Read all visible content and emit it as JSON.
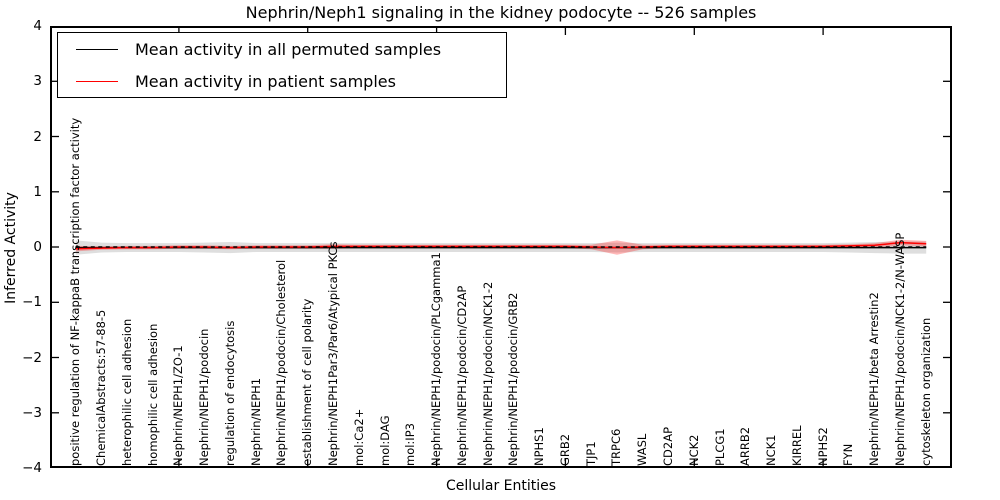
{
  "title": "Nephrin/Neph1 signaling in the kidney podocyte -- 526 samples",
  "axes": {
    "ylabel": "Inferred Activity",
    "xlabel": "Cellular Entities",
    "yticks": [
      {
        "value": 4,
        "label": "4"
      },
      {
        "value": 3,
        "label": "3"
      },
      {
        "value": 2,
        "label": "2"
      },
      {
        "value": 1,
        "label": "1"
      },
      {
        "value": 0,
        "label": "0"
      },
      {
        "value": -1,
        "label": "−1"
      },
      {
        "value": -2,
        "label": "−2"
      },
      {
        "value": -3,
        "label": "−3"
      },
      {
        "value": -4,
        "label": "−4"
      }
    ]
  },
  "legend": {
    "items": [
      {
        "label": "Mean activity in all permuted samples",
        "color": "#000000"
      },
      {
        "label": "Mean activity in patient samples",
        "color": "#ff0000"
      }
    ]
  },
  "chart_data": {
    "type": "line",
    "title": "Nephrin/Neph1 signaling in the kidney podocyte -- 526 samples",
    "xlabel": "Cellular Entities",
    "ylabel": "Inferred Activity",
    "ylim": [
      -4,
      4
    ],
    "xlim": [
      0,
      35
    ],
    "xticks": [
      0,
      5,
      10,
      15,
      20,
      25,
      30,
      35
    ],
    "grid": false,
    "legend_position": "upper left",
    "zero_line": {
      "y": 0,
      "style": "dashed",
      "color": "#000000"
    },
    "categories": [
      "positive regulation of NF-kappaB transcription factor activity",
      "ChemicalAbstracts:57-88-5",
      "heterophilic cell adhesion",
      "homophilic cell adhesion",
      "Nephrin/NEPH1/ZO-1",
      "Nephrin/NEPH1/podocin",
      "regulation of endocytosis",
      "Nephrin/NEPH1",
      "Nephrin/NEPH1/podocin/Cholesterol",
      "establishment of cell polarity",
      "Nephrin/NEPH1Par3/Par6/Atypical PKCs",
      "mol:Ca2+",
      "mol:DAG",
      "mol:IP3",
      "Nephrin/NEPH1/podocin/PLCgamma1",
      "Nephrin/NEPH1/podocin/CD2AP",
      "Nephrin/NEPH1/podocin/NCK1-2",
      "Nephrin/NEPH1/podocin/GRB2",
      "NPHS1",
      "GRB2",
      "TJP1",
      "TRPC6",
      "WASL",
      "CD2AP",
      "NCK2",
      "PLCG1",
      "ARRB2",
      "NCK1",
      "KIRREL",
      "NPHS2",
      "FYN",
      "Nephrin/NEPH1/beta Arrestin2",
      "Nephrin/NEPH1/podocin/NCK1-2/N-WASP",
      "cytoskeleton organization"
    ],
    "series": [
      {
        "name": "Mean activity in all permuted samples",
        "color": "#000000",
        "line_style": "solid",
        "values": [
          -0.01,
          -0.01,
          -0.01,
          -0.01,
          -0.01,
          -0.01,
          -0.01,
          -0.01,
          -0.01,
          -0.01,
          -0.01,
          -0.01,
          -0.01,
          -0.01,
          -0.01,
          -0.01,
          -0.01,
          -0.01,
          -0.01,
          -0.01,
          -0.01,
          -0.01,
          -0.01,
          -0.01,
          -0.01,
          -0.01,
          -0.01,
          -0.01,
          -0.01,
          -0.01,
          -0.01,
          -0.01,
          -0.01,
          -0.01
        ],
        "ci_half_width": [
          0.13,
          0.09,
          0.08,
          0.08,
          0.08,
          0.09,
          0.1,
          0.08,
          0.08,
          0.08,
          0.08,
          0.08,
          0.08,
          0.08,
          0.08,
          0.08,
          0.08,
          0.08,
          0.08,
          0.08,
          0.08,
          0.09,
          0.08,
          0.08,
          0.08,
          0.08,
          0.08,
          0.08,
          0.08,
          0.08,
          0.09,
          0.1,
          0.11,
          0.11
        ],
        "ci_fill": "rgba(0,0,0,0.13)"
      },
      {
        "name": "Mean activity in patient samples",
        "color": "#ff0000",
        "line_style": "solid",
        "values": [
          -0.03,
          -0.02,
          -0.01,
          -0.01,
          0,
          0,
          -0.01,
          0,
          0,
          0,
          0.01,
          0.01,
          0.01,
          0.01,
          0.01,
          0.01,
          0.01,
          0.01,
          0.01,
          0.01,
          0,
          -0.01,
          0,
          0.01,
          0.01,
          0.01,
          0.01,
          0.01,
          0.01,
          0.01,
          0.02,
          0.03,
          0.08,
          0.06
        ],
        "ci_half_width": [
          0.05,
          0.03,
          0.03,
          0.03,
          0.03,
          0.03,
          0.03,
          0.03,
          0.03,
          0.03,
          0.04,
          0.03,
          0.03,
          0.03,
          0.03,
          0.03,
          0.03,
          0.03,
          0.03,
          0.03,
          0.04,
          0.13,
          0.04,
          0.03,
          0.03,
          0.03,
          0.03,
          0.03,
          0.03,
          0.03,
          0.03,
          0.04,
          0.05,
          0.05
        ],
        "ci_fill": "rgba(255,0,0,0.28)"
      }
    ]
  }
}
